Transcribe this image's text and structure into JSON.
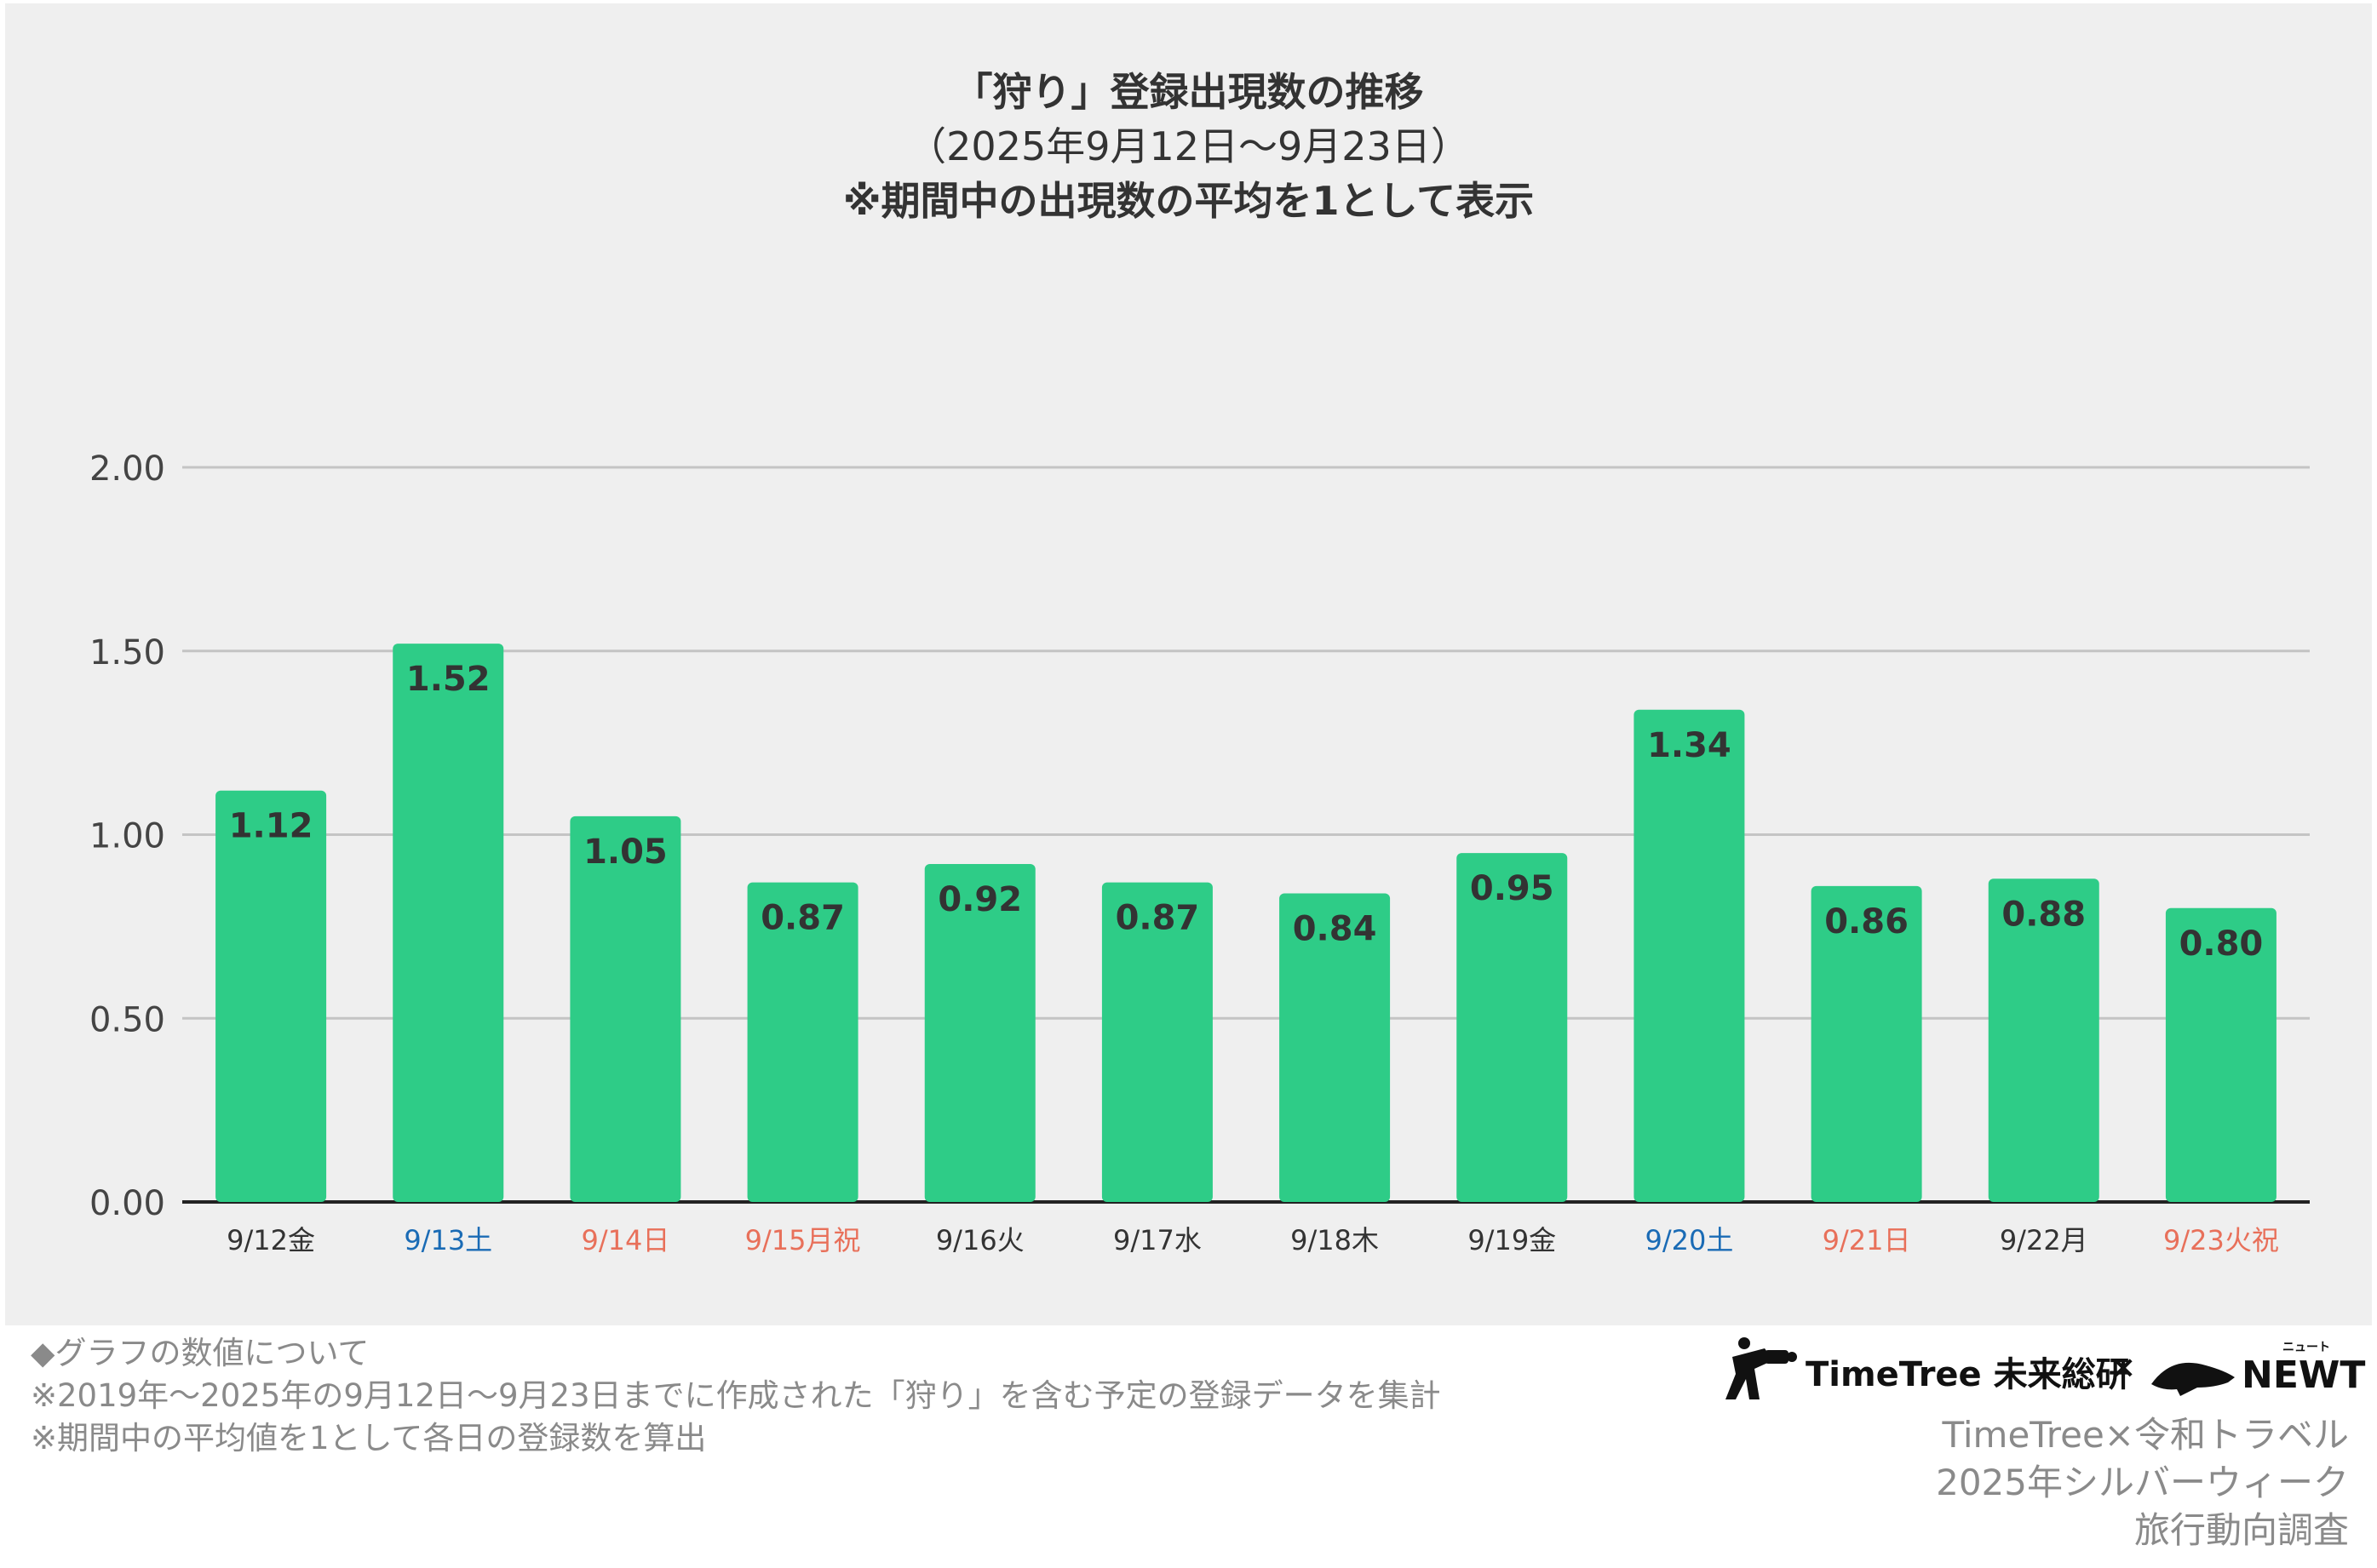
{
  "chart_title": {
    "line1": "「狩り」登録出現数の推移",
    "line2": "（2025年9月12日〜9月23日）",
    "line3": "※期間中の出現数の平均を1として表示"
  },
  "chart_data": {
    "type": "bar",
    "categories": [
      "9/12金",
      "9/13土",
      "9/14日",
      "9/15月祝",
      "9/16火",
      "9/17水",
      "9/18木",
      "9/19金",
      "9/20土",
      "9/21日",
      "9/22月",
      "9/23火祝"
    ],
    "category_colors": [
      "#333333",
      "#1a6bb5",
      "#e8705a",
      "#e8705a",
      "#333333",
      "#333333",
      "#333333",
      "#333333",
      "#1a6bb5",
      "#e8705a",
      "#333333",
      "#e8705a"
    ],
    "values": [
      1.12,
      1.52,
      1.05,
      0.87,
      0.92,
      0.87,
      0.84,
      0.95,
      1.34,
      0.86,
      0.88,
      0.8
    ],
    "value_labels": [
      "1.12",
      "1.52",
      "1.05",
      "0.87",
      "0.92",
      "0.87",
      "0.84",
      "0.95",
      "1.34",
      "0.86",
      "0.88",
      "0.80"
    ],
    "yticks": [
      "0.00",
      "0.50",
      "1.00",
      "1.50",
      "2.00"
    ],
    "ylim": [
      0,
      2
    ],
    "grid": true,
    "bar_color": "#2ecc87",
    "label_color": "#333333",
    "background": "#efefef"
  },
  "notes": {
    "heading": "◆グラフの数値について",
    "line1": "※2019年〜2025年の9月12日〜9月23日までに作成された「狩り」を含む予定の登録データを集計",
    "line2": "※期間中の平均値を1として各日の登録数を算出"
  },
  "logo": {
    "brand1": "TimeTree 未来総研",
    "cross": "×",
    "brand2": "NEWT",
    "brand2_ruby": "ニュート"
  },
  "credit": {
    "line1": "TimeTree×令和トラベル",
    "line2": "2025年シルバーウィーク",
    "line3": "旅行動向調査"
  }
}
